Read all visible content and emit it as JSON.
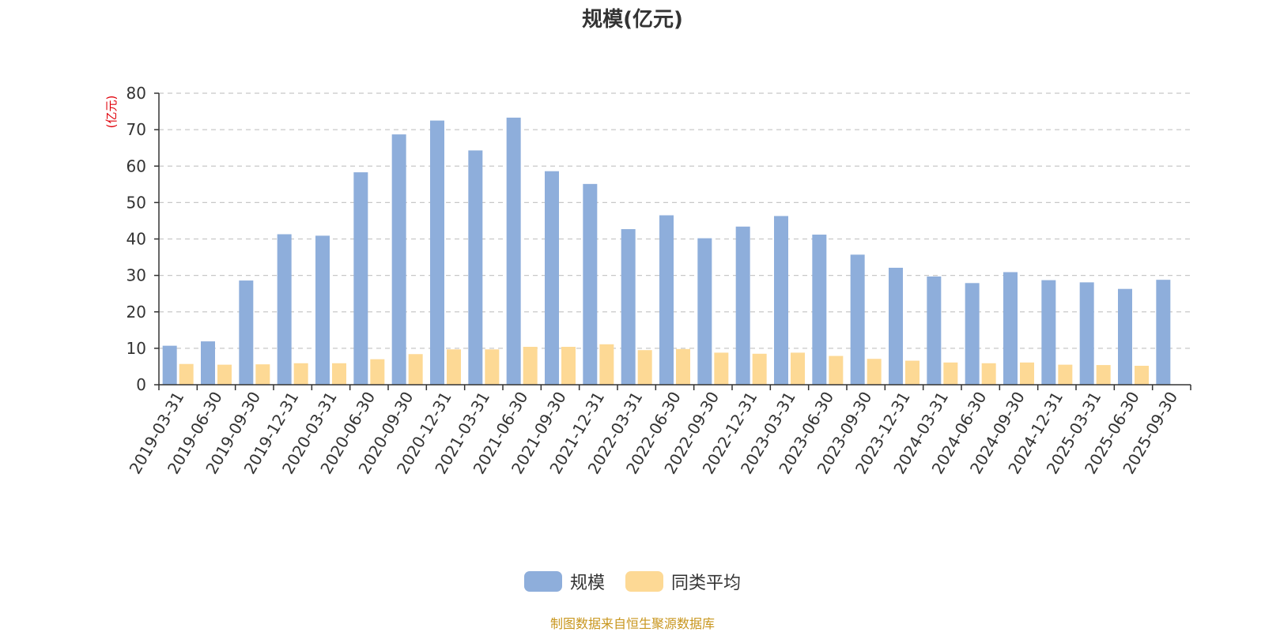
{
  "chart_data": {
    "type": "bar",
    "title": "规模(亿元)",
    "ylabel": "(亿元)",
    "ylim": [
      0,
      80
    ],
    "yticks": [
      0,
      10,
      20,
      30,
      40,
      50,
      60,
      70,
      80
    ],
    "grid": true,
    "legend_position": "bottom",
    "categories": [
      "2019-03-31",
      "2019-06-30",
      "2019-09-30",
      "2019-12-31",
      "2020-03-31",
      "2020-06-30",
      "2020-09-30",
      "2020-12-31",
      "2021-03-31",
      "2021-06-30",
      "2021-09-30",
      "2021-12-31",
      "2022-03-31",
      "2022-06-30",
      "2022-09-30",
      "2022-12-31",
      "2023-03-31",
      "2023-06-30",
      "2023-09-30",
      "2023-12-31",
      "2024-03-31",
      "2024-06-30",
      "2024-09-30",
      "2024-12-31",
      "2025-03-31",
      "2025-06-30",
      "2025-09-30"
    ],
    "series": [
      {
        "name": "规模",
        "color": "#8eaedb",
        "values": [
          10.7,
          11.9,
          28.6,
          41.3,
          40.9,
          58.3,
          68.7,
          72.5,
          64.3,
          73.3,
          58.6,
          55.1,
          42.7,
          46.5,
          40.2,
          43.4,
          46.3,
          41.2,
          35.7,
          32.1,
          29.7,
          27.9,
          30.9,
          28.7,
          28.1,
          26.3,
          28.8
        ]
      },
      {
        "name": "同类平均",
        "color": "#fdd995",
        "values": [
          5.7,
          5.5,
          5.6,
          5.9,
          5.9,
          7.0,
          8.4,
          9.7,
          9.7,
          10.4,
          10.4,
          11.1,
          9.5,
          9.8,
          8.8,
          8.5,
          8.8,
          7.9,
          7.1,
          6.6,
          6.1,
          5.9,
          6.1,
          5.5,
          5.4,
          5.2,
          null
        ]
      }
    ]
  },
  "source_text": "制图数据来自恒生聚源数据库"
}
